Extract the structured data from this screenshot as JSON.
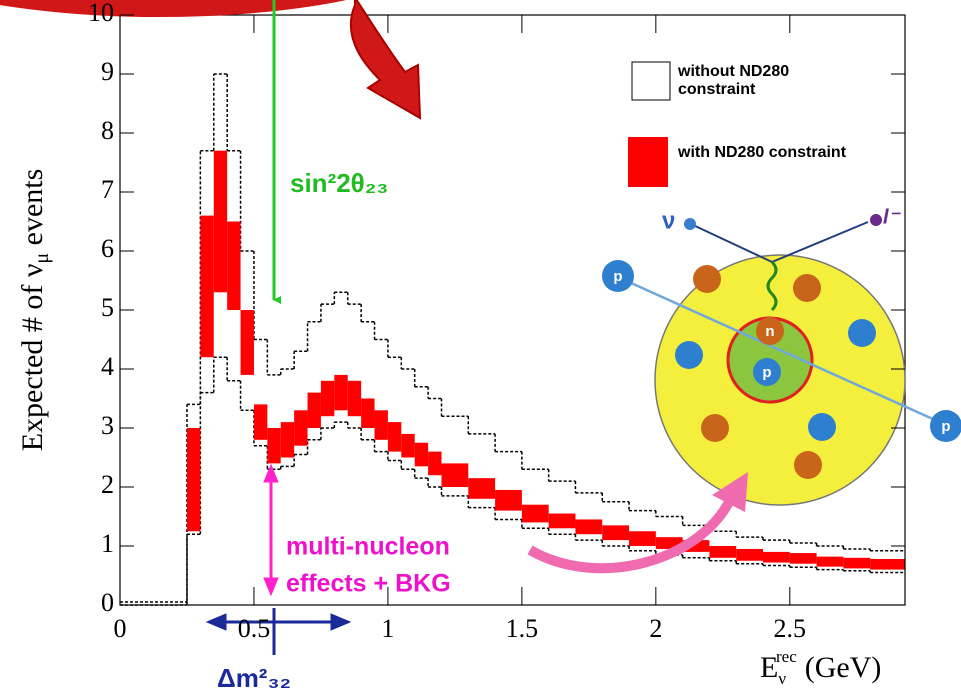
{
  "chart_data": {
    "type": "histogram-band",
    "ylabel": {
      "text": "Expected # of ν",
      "sub": "μ",
      "tail": "events"
    },
    "xlabel": {
      "base": "E",
      "sub": "ν",
      "sup": "rec",
      "unit": "(GeV)"
    },
    "xlim": [
      0,
      2.93
    ],
    "ylim": [
      0,
      10
    ],
    "xticks": [
      0,
      0.5,
      1,
      1.5,
      2,
      2.5
    ],
    "yticks": [
      0,
      1,
      2,
      3,
      4,
      5,
      6,
      7,
      8,
      9,
      10
    ],
    "bins": [
      0,
      0.25,
      0.3,
      0.35,
      0.4,
      0.45,
      0.5,
      0.55,
      0.6,
      0.65,
      0.7,
      0.75,
      0.8,
      0.85,
      0.9,
      0.95,
      1.0,
      1.05,
      1.1,
      1.15,
      1.2,
      1.3,
      1.4,
      1.5,
      1.6,
      1.7,
      1.8,
      1.9,
      2.0,
      2.1,
      2.2,
      2.3,
      2.4,
      2.5,
      2.6,
      2.7,
      2.8,
      2.93
    ],
    "series": [
      {
        "name": "without ND280 constraint",
        "style": "dashed",
        "color": "#000000",
        "lower": [
          0,
          1.2,
          3.6,
          4.2,
          3.8,
          3.3,
          2.7,
          2.3,
          2.35,
          2.55,
          2.8,
          3.0,
          3.1,
          3.0,
          2.8,
          2.6,
          2.45,
          2.3,
          2.15,
          2.0,
          1.85,
          1.65,
          1.45,
          1.3,
          1.2,
          1.1,
          1.0,
          0.92,
          0.85,
          0.8,
          0.75,
          0.7,
          0.67,
          0.64,
          0.6,
          0.58,
          0.55
        ],
        "upper": [
          0.05,
          3.4,
          7.7,
          9.0,
          7.7,
          6.0,
          4.5,
          3.9,
          4.0,
          4.3,
          4.8,
          5.1,
          5.3,
          5.1,
          4.8,
          4.5,
          4.2,
          4.0,
          3.7,
          3.5,
          3.2,
          2.9,
          2.6,
          2.3,
          2.1,
          1.9,
          1.75,
          1.6,
          1.5,
          1.35,
          1.25,
          1.15,
          1.1,
          1.05,
          1.0,
          0.95,
          0.92
        ]
      },
      {
        "name": "with ND280 constraint",
        "style": "filled",
        "color": "#ff0000",
        "lower": [
          0,
          1.25,
          4.2,
          5.3,
          5.0,
          3.9,
          2.8,
          2.4,
          2.5,
          2.7,
          3.0,
          3.2,
          3.3,
          3.2,
          3.0,
          2.8,
          2.6,
          2.5,
          2.35,
          2.2,
          2.0,
          1.8,
          1.6,
          1.4,
          1.3,
          1.2,
          1.1,
          1.0,
          0.95,
          0.9,
          0.8,
          0.75,
          0.72,
          0.7,
          0.65,
          0.62,
          0.6
        ],
        "upper": [
          0,
          3.0,
          6.6,
          7.7,
          6.5,
          5.0,
          3.4,
          3.0,
          3.1,
          3.3,
          3.6,
          3.8,
          3.9,
          3.8,
          3.5,
          3.3,
          3.1,
          2.9,
          2.75,
          2.6,
          2.4,
          2.15,
          1.95,
          1.7,
          1.55,
          1.45,
          1.35,
          1.25,
          1.15,
          1.1,
          1.0,
          0.95,
          0.9,
          0.88,
          0.82,
          0.8,
          0.78
        ]
      }
    ],
    "annotations": {
      "mixing": "sin²2θ₂₃",
      "mass": "Δm²₃₂",
      "nucleon": [
        "multi-nucleon",
        "effects + BKG"
      ]
    },
    "inset": {
      "neutrino": "ν",
      "lepton": "l⁻",
      "proton_left": "p",
      "proton_right": "p",
      "proton_center": "p",
      "neutron": "n"
    }
  }
}
